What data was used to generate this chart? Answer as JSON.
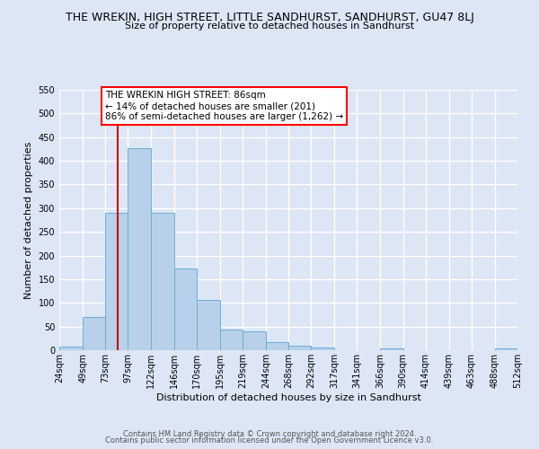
{
  "title": "THE WREKIN, HIGH STREET, LITTLE SANDHURST, SANDHURST, GU47 8LJ",
  "subtitle": "Size of property relative to detached houses in Sandhurst",
  "xlabel": "Distribution of detached houses by size in Sandhurst",
  "ylabel": "Number of detached properties",
  "bar_edges": [
    24,
    49,
    73,
    97,
    122,
    146,
    170,
    195,
    219,
    244,
    268,
    292,
    317,
    341,
    366,
    390,
    414,
    439,
    463,
    488,
    512
  ],
  "bar_heights": [
    8,
    70,
    291,
    427,
    291,
    173,
    106,
    44,
    39,
    17,
    9,
    5,
    0,
    0,
    4,
    0,
    0,
    0,
    0,
    4
  ],
  "bar_color": "#b8d0ea",
  "bar_edgecolor": "#6aaed6",
  "bg_color": "#dce6f5",
  "grid_color": "#ffffff",
  "vline_x": 86,
  "vline_color": "#cc0000",
  "annotation_box_text": "THE WREKIN HIGH STREET: 86sqm\n← 14% of detached houses are smaller (201)\n86% of semi-detached houses are larger (1,262) →",
  "annotation_fontsize": 7.5,
  "ylim": [
    0,
    550
  ],
  "yticks": [
    0,
    50,
    100,
    150,
    200,
    250,
    300,
    350,
    400,
    450,
    500,
    550
  ],
  "tick_labels": [
    "24sqm",
    "49sqm",
    "73sqm",
    "97sqm",
    "122sqm",
    "146sqm",
    "170sqm",
    "195sqm",
    "219sqm",
    "244sqm",
    "268sqm",
    "292sqm",
    "317sqm",
    "341sqm",
    "366sqm",
    "390sqm",
    "414sqm",
    "439sqm",
    "463sqm",
    "488sqm",
    "512sqm"
  ],
  "footer_line1": "Contains HM Land Registry data © Crown copyright and database right 2024.",
  "footer_line2": "Contains public sector information licensed under the Open Government Licence v3.0.",
  "title_fontsize": 9,
  "subtitle_fontsize": 8,
  "label_fontsize": 8,
  "tick_fontsize": 7,
  "footer_fontsize": 6
}
